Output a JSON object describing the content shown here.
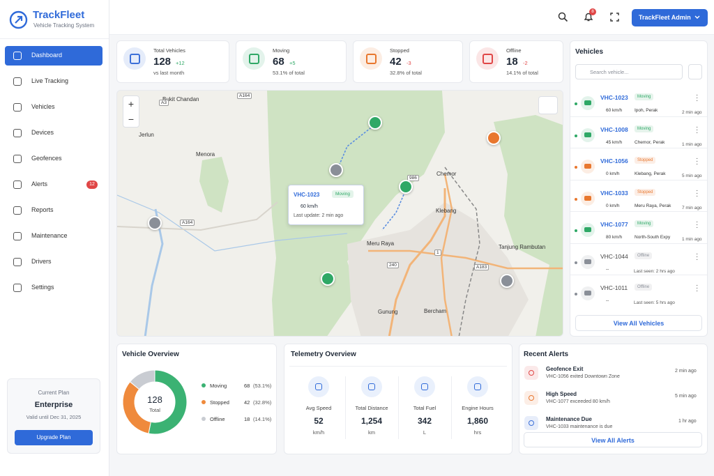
{
  "sidebar": {
    "brand": "TrackFleet",
    "tagline": "Vehicle Tracking System",
    "nav": [
      {
        "label": "Dashboard",
        "active": true
      },
      {
        "label": "Live Tracking"
      },
      {
        "label": "Vehicles"
      },
      {
        "label": "Devices"
      },
      {
        "label": "Geofences"
      },
      {
        "label": "Alerts",
        "badge": 12
      },
      {
        "label": "Reports"
      },
      {
        "label": "Maintenance"
      },
      {
        "label": "Drivers"
      },
      {
        "label": "Settings"
      }
    ],
    "plan": {
      "heading": "Current Plan",
      "name": "Enterprise",
      "validity": "Valid until Dec 31, 2025",
      "button": "Upgrade Plan"
    }
  },
  "topbar": {
    "notifications": 8,
    "user": "TrackFleet Admin"
  },
  "stats": [
    {
      "label": "Total Vehicles",
      "value": 128,
      "change": "+12",
      "note": "vs last month",
      "color": "#3b6fd8"
    },
    {
      "label": "Moving",
      "value": 68,
      "change": "+5",
      "note": "53.1% of total",
      "color": "#2fa866"
    },
    {
      "label": "Stopped",
      "value": 42,
      "change": "-3",
      "note": "32.8% of total",
      "color": "#e8772e"
    },
    {
      "label": "Offline",
      "value": 18,
      "change": "-2",
      "note": "14.1% of total",
      "color": "#e04646"
    }
  ],
  "map": {
    "places": [
      "Bukit Chandan",
      "Jerlun",
      "Menora",
      "Chemor",
      "Klebang",
      "Meru Raya",
      "Tanjung Rambutan",
      "Bercham",
      "Gunung"
    ],
    "roads": [
      "A164",
      "A3",
      "A164",
      "A183",
      "240",
      "1",
      "986"
    ],
    "popup": {
      "id": "VHC-1023",
      "status": "Moving",
      "speed": "60 km/h",
      "update": "Last update: 2 min ago"
    }
  },
  "vehicles": {
    "title": "Vehicles",
    "search": "Search vehicle...",
    "button": "View All Vehicles",
    "list": [
      {
        "id": "VHC-1023",
        "status": "Moving",
        "color": "#2fa866",
        "speed": "60 km/h",
        "location": "Ipoh, Perak",
        "time": "2 min ago"
      },
      {
        "id": "VHC-1008",
        "status": "Moving",
        "color": "#2fa866",
        "speed": "45 km/h",
        "location": "Chemor, Perak",
        "time": "1 min ago"
      },
      {
        "id": "VHC-1056",
        "status": "Stopped",
        "color": "#e8772e",
        "speed": "0 km/h",
        "location": "Klebang, Perak",
        "time": "5 min ago"
      },
      {
        "id": "VHC-1033",
        "status": "Stopped",
        "color": "#e8772e",
        "speed": "0 km/h",
        "location": "Meru Raya, Perak",
        "time": "7 min ago"
      },
      {
        "id": "VHC-1077",
        "status": "Moving",
        "color": "#2fa866",
        "speed": "80 km/h",
        "location": "North-South Expy",
        "time": "1 min ago"
      },
      {
        "id": "VHC-1044",
        "status": "Offline",
        "color": "#8a8f98",
        "speed": "--",
        "time": "Last seen: 2 hrs ago"
      },
      {
        "id": "VHC-1011",
        "status": "Offline",
        "color": "#8a8f98",
        "speed": "--",
        "time": "Last seen: 5 hrs ago"
      }
    ]
  },
  "overview": {
    "title": "Vehicle Overview",
    "total": 128,
    "total_label": "Total",
    "segments": [
      {
        "name": "Moving",
        "value": 68,
        "pct": "(53.1%)",
        "color": "#3bb273"
      },
      {
        "name": "Stopped",
        "value": 42,
        "pct": "(32.8%)",
        "color": "#ef8a3c"
      },
      {
        "name": "Offline",
        "value": 18,
        "pct": "(14.1%)",
        "color": "#c9ccd2"
      }
    ]
  },
  "telemetry": {
    "title": "Telemetry Overview",
    "metrics": [
      {
        "label": "Avg Speed",
        "value": 52,
        "unit": "km/h"
      },
      {
        "label": "Total Distance",
        "value": "1,254",
        "unit": "km"
      },
      {
        "label": "Total Fuel",
        "value": 342,
        "unit": "L"
      },
      {
        "label": "Engine Hours",
        "value": "1,860",
        "unit": "hrs"
      }
    ]
  },
  "alerts": {
    "title": "Recent Alerts",
    "button": "View All Alerts",
    "items": [
      {
        "title": "Geofence Exit",
        "detail": "VHC-1056 exited Downtown Zone",
        "time": "2 min ago",
        "color": "#e04646"
      },
      {
        "title": "High Speed",
        "detail": "VHC-1077 exceeded 80 km/h",
        "time": "5 min ago",
        "color": "#e8772e"
      },
      {
        "title": "Maintenance Due",
        "detail": "VHC-1033 maintenance is due",
        "time": "1 hr ago",
        "color": "#3b6fd8"
      }
    ]
  }
}
